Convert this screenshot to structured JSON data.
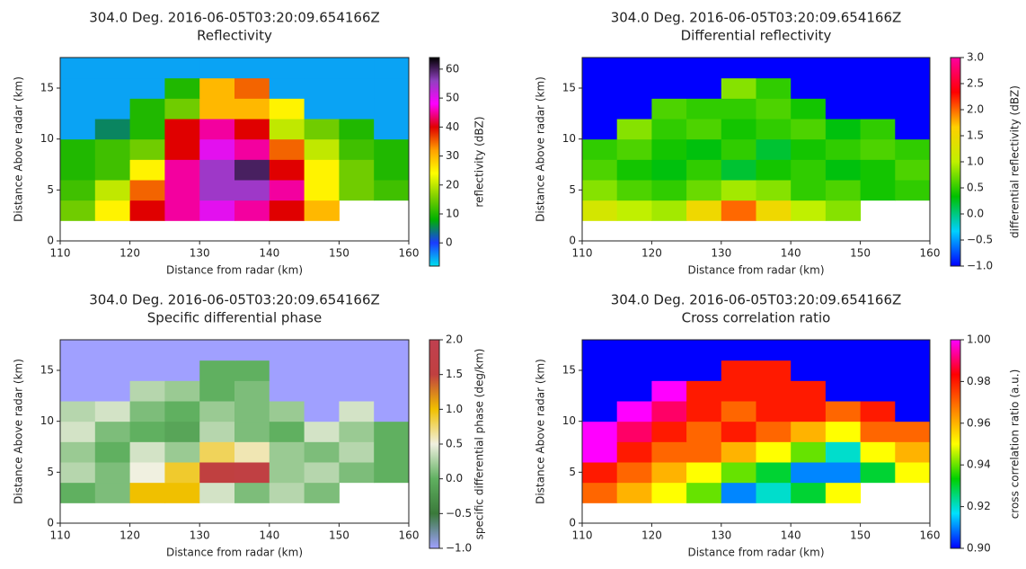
{
  "chart_data": [
    {
      "type": "heatmap",
      "title": "304.0 Deg. 2016-06-05T03:20:09.654166Z",
      "subtitle": "Reflectivity",
      "xlabel": "Distance from radar (km)",
      "ylabel": "Distance Above radar  (km)",
      "xlim": [
        110,
        160
      ],
      "xticks": [
        110,
        120,
        130,
        140,
        150,
        160
      ],
      "ylim": [
        0,
        18
      ],
      "yticks": [
        0,
        5,
        10,
        15
      ],
      "xbins": [
        110,
        115,
        120,
        125,
        130,
        135,
        140,
        145,
        150,
        155,
        160
      ],
      "ybins": [
        0,
        2,
        4,
        6,
        8,
        10,
        12,
        14,
        16,
        18
      ],
      "values": [
        [
          null,
          null,
          null,
          null,
          null,
          null,
          null,
          null,
          null,
          null
        ],
        [
          15,
          25,
          40,
          45,
          50,
          45,
          40,
          30,
          null,
          null
        ],
        [
          12,
          20,
          35,
          45,
          55,
          55,
          45,
          25,
          15,
          12
        ],
        [
          10,
          12,
          25,
          45,
          55,
          60,
          40,
          25,
          15,
          10
        ],
        [
          10,
          12,
          15,
          40,
          50,
          45,
          35,
          20,
          12,
          10
        ],
        [
          -5,
          5,
          10,
          40,
          45,
          40,
          20,
          15,
          10,
          -5
        ],
        [
          -5,
          -5,
          10,
          15,
          30,
          30,
          25,
          -5,
          -5,
          -5
        ],
        [
          -5,
          -5,
          -5,
          10,
          30,
          35,
          -5,
          -5,
          -5,
          -5
        ],
        [
          -5,
          -5,
          -5,
          -5,
          -5,
          -5,
          -5,
          -5,
          -5,
          -5
        ]
      ],
      "colorbar_label": "reflectivity (dBZ)",
      "zlim": [
        -8,
        64
      ],
      "zticks": [
        0,
        10,
        20,
        30,
        40,
        50,
        60
      ],
      "colormap": [
        "#00e0ee",
        "#1a3cff",
        "#00b000",
        "#80d000",
        "#ffff00",
        "#ffa000",
        "#e00000",
        "#ff00ff",
        "#9040c0",
        "#000000"
      ]
    },
    {
      "type": "heatmap",
      "title": "304.0 Deg. 2016-06-05T03:20:09.654166Z",
      "subtitle": "Differential reflectivity",
      "xlabel": "Distance from radar (km)",
      "ylabel": "Distance Above radar  (km)",
      "xlim": [
        110,
        160
      ],
      "xticks": [
        110,
        120,
        130,
        140,
        150,
        160
      ],
      "ylim": [
        0,
        18
      ],
      "yticks": [
        0,
        5,
        10,
        15
      ],
      "xbins": [
        110,
        115,
        120,
        125,
        130,
        135,
        140,
        145,
        150,
        155,
        160
      ],
      "ybins": [
        0,
        2,
        4,
        6,
        8,
        10,
        12,
        14,
        16,
        18
      ],
      "values": [
        [
          null,
          null,
          null,
          null,
          null,
          null,
          null,
          null,
          null,
          null
        ],
        [
          1.2,
          1.0,
          0.9,
          1.5,
          2.0,
          1.5,
          1.0,
          0.8,
          null,
          null
        ],
        [
          0.8,
          0.6,
          0.5,
          0.7,
          0.9,
          0.8,
          0.5,
          0.6,
          0.4,
          0.5
        ],
        [
          0.6,
          0.4,
          0.3,
          0.5,
          0.2,
          0.4,
          0.5,
          0.3,
          0.4,
          0.6
        ],
        [
          0.5,
          0.6,
          0.4,
          0.3,
          0.5,
          0.2,
          0.4,
          0.5,
          0.6,
          0.5
        ],
        [
          -1,
          0.8,
          0.5,
          0.6,
          0.4,
          0.5,
          0.6,
          0.3,
          0.5,
          -1
        ],
        [
          -1,
          -1,
          0.6,
          0.5,
          0.5,
          0.6,
          0.4,
          -1,
          -1,
          -1
        ],
        [
          -1,
          -1,
          -1,
          -1,
          0.8,
          0.5,
          -1,
          -1,
          -1,
          -1
        ],
        [
          -1,
          -1,
          -1,
          -1,
          -1,
          -1,
          -1,
          -1,
          -1,
          -1
        ]
      ],
      "colorbar_label": "differential reflectivity (dBZ)",
      "zlim": [
        -1,
        3
      ],
      "zticks": [
        {
          "value": -1,
          "label": "−1.0"
        },
        {
          "value": -0.5,
          "label": "−0.5"
        },
        {
          "value": 0,
          "label": "0.0"
        },
        0.5,
        {
          "value": 1,
          "label": "1.0"
        },
        1.5,
        {
          "value": 2,
          "label": "2.0"
        },
        2.5,
        {
          "value": 3,
          "label": "3.0"
        }
      ],
      "colormap": [
        "#0000ff",
        "#00d0ff",
        "#00c000",
        "#c0f000",
        "#ffd000",
        "#ff0000",
        "#ff00a0"
      ]
    },
    {
      "type": "heatmap",
      "title": "304.0 Deg. 2016-06-05T03:20:09.654166Z",
      "subtitle": "Specific differential phase",
      "xlabel": "Distance from radar (km)",
      "ylabel": "Distance Above radar  (km)",
      "xlim": [
        110,
        160
      ],
      "xticks": [
        110,
        120,
        130,
        140,
        150,
        160
      ],
      "ylim": [
        0,
        18
      ],
      "yticks": [
        0,
        5,
        10,
        15
      ],
      "xbins": [
        110,
        115,
        120,
        125,
        130,
        135,
        140,
        145,
        150,
        155,
        160
      ],
      "ybins": [
        0,
        2,
        4,
        6,
        8,
        10,
        12,
        14,
        16,
        18
      ],
      "values": [
        [
          null,
          null,
          null,
          null,
          null,
          null,
          null,
          null,
          null,
          null
        ],
        [
          0.0,
          0.1,
          1.0,
          1.0,
          0.4,
          0.1,
          0.3,
          0.1,
          null,
          null
        ],
        [
          0.3,
          0.1,
          0.5,
          0.9,
          1.5,
          1.6,
          0.2,
          0.3,
          0.1,
          0.0
        ],
        [
          0.2,
          0.0,
          0.4,
          0.2,
          0.8,
          0.6,
          0.2,
          0.1,
          0.3,
          0.0
        ],
        [
          0.4,
          0.1,
          0.0,
          -0.1,
          0.3,
          0.1,
          0.0,
          0.4,
          0.2,
          0.0
        ],
        [
          0.3,
          0.4,
          0.1,
          0.0,
          0.2,
          0.1,
          0.2,
          -1,
          0.4,
          -1
        ],
        [
          -1,
          -1,
          0.3,
          0.2,
          0.0,
          0.1,
          -1,
          -1,
          -1,
          -1
        ],
        [
          -1,
          -1,
          -1,
          -1,
          0.0,
          0.0,
          -1,
          -1,
          -1,
          -1
        ],
        [
          -1,
          -1,
          -1,
          -1,
          -1,
          -1,
          -1,
          -1,
          -1,
          -1
        ]
      ],
      "colorbar_label": "specific differential phase (deg/km)",
      "zlim": [
        -1,
        2
      ],
      "zticks": [
        {
          "value": -1,
          "label": "−1.0"
        },
        {
          "value": -0.5,
          "label": "−0.5"
        },
        {
          "value": 0,
          "label": "0.0"
        },
        0.5,
        {
          "value": 1,
          "label": "1.0"
        },
        1.5,
        {
          "value": 2,
          "label": "2.0"
        }
      ],
      "colormap": [
        "#a0a0ff",
        "#3a7a3a",
        "#60b060",
        "#f0f0e0",
        "#f0c000",
        "#c04040",
        "#c04050"
      ]
    },
    {
      "type": "heatmap",
      "title": "304.0 Deg. 2016-06-05T03:20:09.654166Z",
      "subtitle": "Cross correlation ratio",
      "xlabel": "Distance from radar (km)",
      "ylabel": "Distance Above radar  (km)",
      "xlim": [
        110,
        160
      ],
      "xticks": [
        110,
        120,
        130,
        140,
        150,
        160
      ],
      "ylim": [
        0,
        18
      ],
      "yticks": [
        0,
        5,
        10,
        15
      ],
      "xbins": [
        110,
        115,
        120,
        125,
        130,
        135,
        140,
        145,
        150,
        155,
        160
      ],
      "ybins": [
        0,
        2,
        4,
        6,
        8,
        10,
        12,
        14,
        16,
        18
      ],
      "values": [
        [
          null,
          null,
          null,
          null,
          null,
          null,
          null,
          null,
          null,
          null
        ],
        [
          0.97,
          0.96,
          0.95,
          0.94,
          0.91,
          0.92,
          0.93,
          0.95,
          null,
          null
        ],
        [
          0.98,
          0.97,
          0.96,
          0.95,
          0.94,
          0.93,
          0.91,
          0.91,
          0.93,
          0.95
        ],
        [
          1.0,
          0.98,
          0.97,
          0.97,
          0.96,
          0.95,
          0.94,
          0.92,
          0.95,
          0.96
        ],
        [
          1.0,
          0.99,
          0.98,
          0.97,
          0.98,
          0.97,
          0.96,
          0.95,
          0.97,
          0.97
        ],
        [
          0.9,
          1.0,
          0.99,
          0.98,
          0.97,
          0.98,
          0.98,
          0.97,
          0.98,
          0.9
        ],
        [
          0.9,
          0.9,
          1.0,
          0.98,
          0.98,
          0.98,
          0.98,
          0.9,
          0.9,
          0.9
        ],
        [
          0.9,
          0.9,
          0.9,
          0.9,
          0.98,
          0.98,
          0.9,
          0.9,
          0.9,
          0.9
        ],
        [
          0.9,
          0.9,
          0.9,
          0.9,
          0.9,
          0.9,
          0.9,
          0.9,
          0.9,
          0.9
        ]
      ],
      "colorbar_label": "cross correlation ratio (a.u.)",
      "zlim": [
        0.9,
        1.0
      ],
      "zticks": [
        {
          "value": 0.9,
          "label": "0.90"
        },
        0.92,
        0.94,
        0.96,
        0.98,
        {
          "value": 1.0,
          "label": "1.00"
        }
      ],
      "colormap": [
        "#0000ff",
        "#00e0ff",
        "#00d000",
        "#ffff00",
        "#ff8000",
        "#ff0000",
        "#ff00ff"
      ]
    }
  ]
}
